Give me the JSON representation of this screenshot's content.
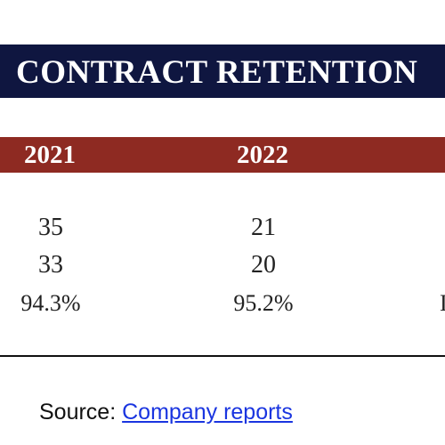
{
  "table": {
    "title": "CONTRACT RETENTION",
    "columns": [
      "2021",
      "2022"
    ],
    "rows": [
      [
        "35",
        "21"
      ],
      [
        "33",
        "20"
      ],
      [
        "94.3%",
        "95.2%"
      ]
    ],
    "truncated_third_column_glyph": "I"
  },
  "footer": {
    "source_prefix": "Source:",
    "source_link": "Company reports"
  },
  "colors": {
    "title_bar": "#0f1640",
    "header_bar": "#8e2a22",
    "link": "#1a35e0"
  }
}
